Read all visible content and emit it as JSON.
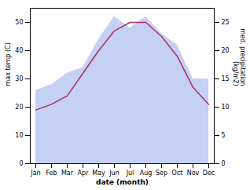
{
  "chart_data": {
    "type": "line",
    "xlabel": "date (month)",
    "ylabel": "max temp (C)",
    "y2label": "med. precipitation\n(kg/m2)",
    "categories": [
      "Jan",
      "Feb",
      "Mar",
      "Apr",
      "May",
      "Jun",
      "Jul",
      "Aug",
      "Sep",
      "Oct",
      "Nov",
      "Dec"
    ],
    "series": [
      {
        "type": "area",
        "axis": "y2",
        "color": "#b0c0f0",
        "values": [
          13,
          14,
          16,
          17,
          22,
          26,
          24,
          26,
          23,
          21,
          15,
          15
        ]
      },
      {
        "type": "line",
        "color": "#b03060",
        "values": [
          19,
          21,
          24,
          32,
          40,
          47,
          50,
          50,
          45,
          38,
          27,
          21
        ]
      }
    ],
    "ylim": [
      0,
      55
    ],
    "yticks": [
      0,
      10,
      20,
      30,
      40,
      50
    ],
    "y2lim": [
      0,
      27.5
    ],
    "y2ticks": [
      0,
      5,
      10,
      15,
      20,
      25
    ]
  }
}
